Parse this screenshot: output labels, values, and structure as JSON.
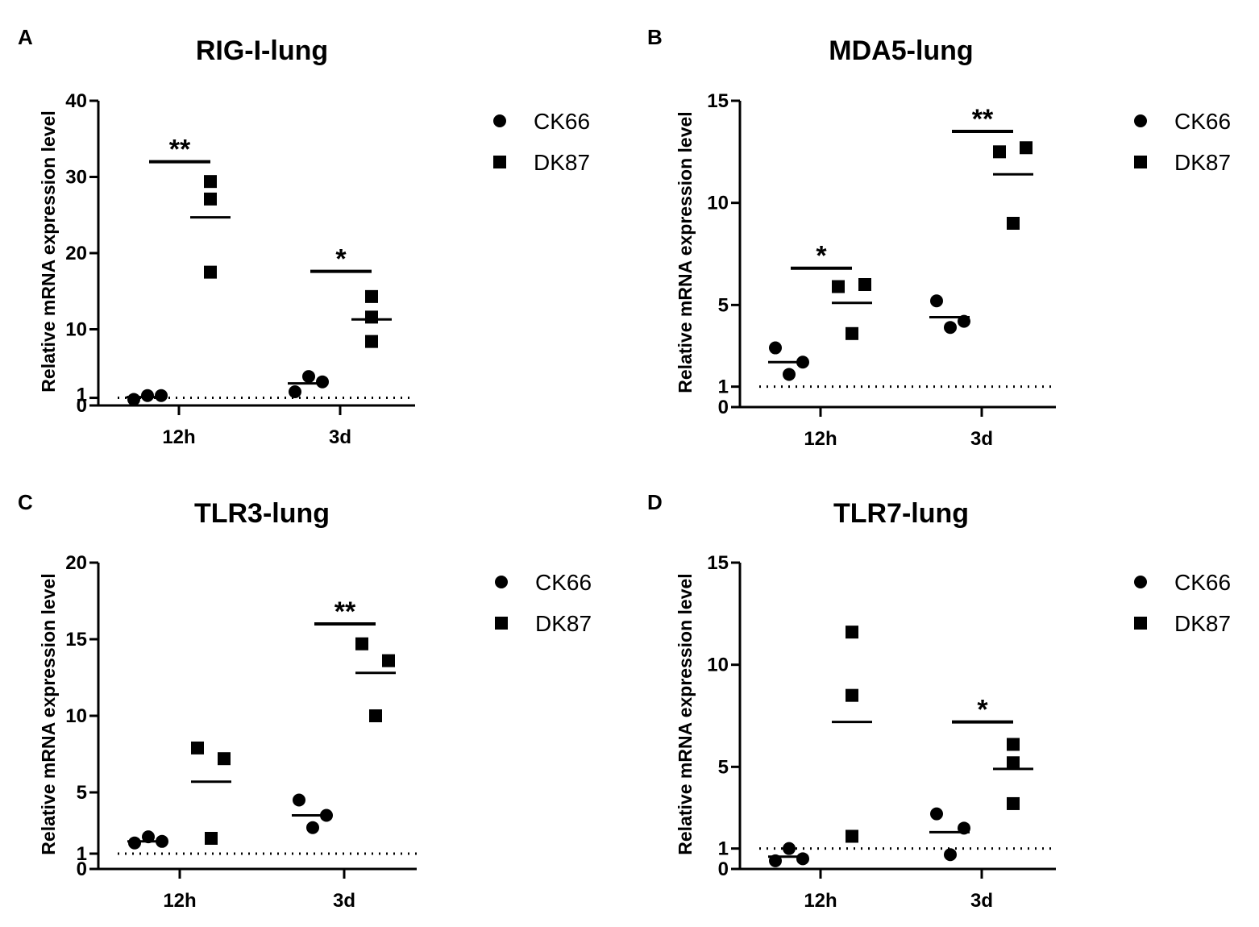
{
  "chart_data": [
    {
      "type": "scatter",
      "panel_label": "A",
      "title": "RIG-I-lung",
      "xlabel": "",
      "ylabel": "Relative mRNA expression level",
      "categories": [
        "12h",
        "3d"
      ],
      "ylim": [
        0,
        40
      ],
      "yticks": [
        0,
        1,
        10,
        20,
        30,
        40
      ],
      "ytick_labels": [
        "0",
        "1",
        "10",
        "20",
        "30",
        "40"
      ],
      "reference_line": 1,
      "series": [
        {
          "name": "CK66",
          "marker": "circle",
          "values": [
            [
              0.8,
              1.3,
              1.3
            ],
            [
              1.8,
              3.8,
              3.1
            ]
          ],
          "means": [
            1.1,
            2.9
          ]
        },
        {
          "name": "DK87",
          "marker": "square",
          "values": [
            [
              29.4,
              27.1,
              17.5
            ],
            [
              14.3,
              11.6,
              8.4
            ]
          ],
          "means": [
            24.7,
            11.3
          ]
        }
      ],
      "significance": [
        {
          "category": "12h",
          "label": "**",
          "y": 32
        },
        {
          "category": "3d",
          "label": "*",
          "y": 17.6
        }
      ]
    },
    {
      "type": "scatter",
      "panel_label": "B",
      "title": "MDA5-lung",
      "xlabel": "",
      "ylabel": "Relative mRNA expression level",
      "categories": [
        "12h",
        "3d"
      ],
      "ylim": [
        0,
        15
      ],
      "yticks": [
        0,
        1,
        5,
        10,
        15
      ],
      "ytick_labels": [
        "0",
        "1",
        "5",
        "10",
        "15"
      ],
      "reference_line": 1,
      "series": [
        {
          "name": "CK66",
          "marker": "circle",
          "values": [
            [
              2.9,
              1.6,
              2.2
            ],
            [
              5.2,
              3.9,
              4.2
            ]
          ],
          "means": [
            2.2,
            4.4
          ]
        },
        {
          "name": "DK87",
          "marker": "square",
          "values": [
            [
              5.9,
              6.0,
              3.6
            ],
            [
              12.5,
              12.7,
              9.0
            ]
          ],
          "means": [
            5.1,
            11.4
          ]
        }
      ],
      "significance": [
        {
          "category": "12h",
          "label": "*",
          "y": 6.8
        },
        {
          "category": "3d",
          "label": "**",
          "y": 13.5
        }
      ]
    },
    {
      "type": "scatter",
      "panel_label": "C",
      "title": "TLR3-lung",
      "xlabel": "",
      "ylabel": "Relative mRNA expression level",
      "categories": [
        "12h",
        "3d"
      ],
      "ylim": [
        0,
        20
      ],
      "yticks": [
        0,
        1,
        5,
        10,
        15,
        20
      ],
      "ytick_labels": [
        "0",
        "1",
        "5",
        "10",
        "15",
        "20"
      ],
      "reference_line": 1,
      "series": [
        {
          "name": "CK66",
          "marker": "circle",
          "values": [
            [
              1.7,
              2.1,
              1.8
            ],
            [
              4.5,
              2.7,
              3.5
            ]
          ],
          "means": [
            1.8,
            3.5
          ]
        },
        {
          "name": "DK87",
          "marker": "square",
          "values": [
            [
              7.9,
              7.2,
              2.0
            ],
            [
              14.7,
              13.6,
              10.0
            ]
          ],
          "means": [
            5.7,
            12.8
          ]
        }
      ],
      "significance": [
        {
          "category": "3d",
          "label": "**",
          "y": 16
        }
      ]
    },
    {
      "type": "scatter",
      "panel_label": "D",
      "title": "TLR7-lung",
      "xlabel": "",
      "ylabel": "Relative mRNA expression level",
      "categories": [
        "12h",
        "3d"
      ],
      "ylim": [
        0,
        15
      ],
      "yticks": [
        0,
        1,
        5,
        10,
        15
      ],
      "ytick_labels": [
        "0",
        "1",
        "5",
        "10",
        "15"
      ],
      "reference_line": 1,
      "series": [
        {
          "name": "CK66",
          "marker": "circle",
          "values": [
            [
              0.4,
              1.0,
              0.5
            ],
            [
              2.7,
              0.7,
              2.0
            ]
          ],
          "means": [
            0.6,
            1.8
          ]
        },
        {
          "name": "DK87",
          "marker": "square",
          "values": [
            [
              11.6,
              8.5,
              1.6
            ],
            [
              6.1,
              5.2,
              3.2
            ]
          ],
          "means": [
            7.2,
            4.9
          ]
        }
      ],
      "significance": [
        {
          "category": "3d",
          "label": "*",
          "y": 7.2
        }
      ]
    }
  ],
  "legend": {
    "entries": [
      "CK66",
      "DK87"
    ]
  }
}
